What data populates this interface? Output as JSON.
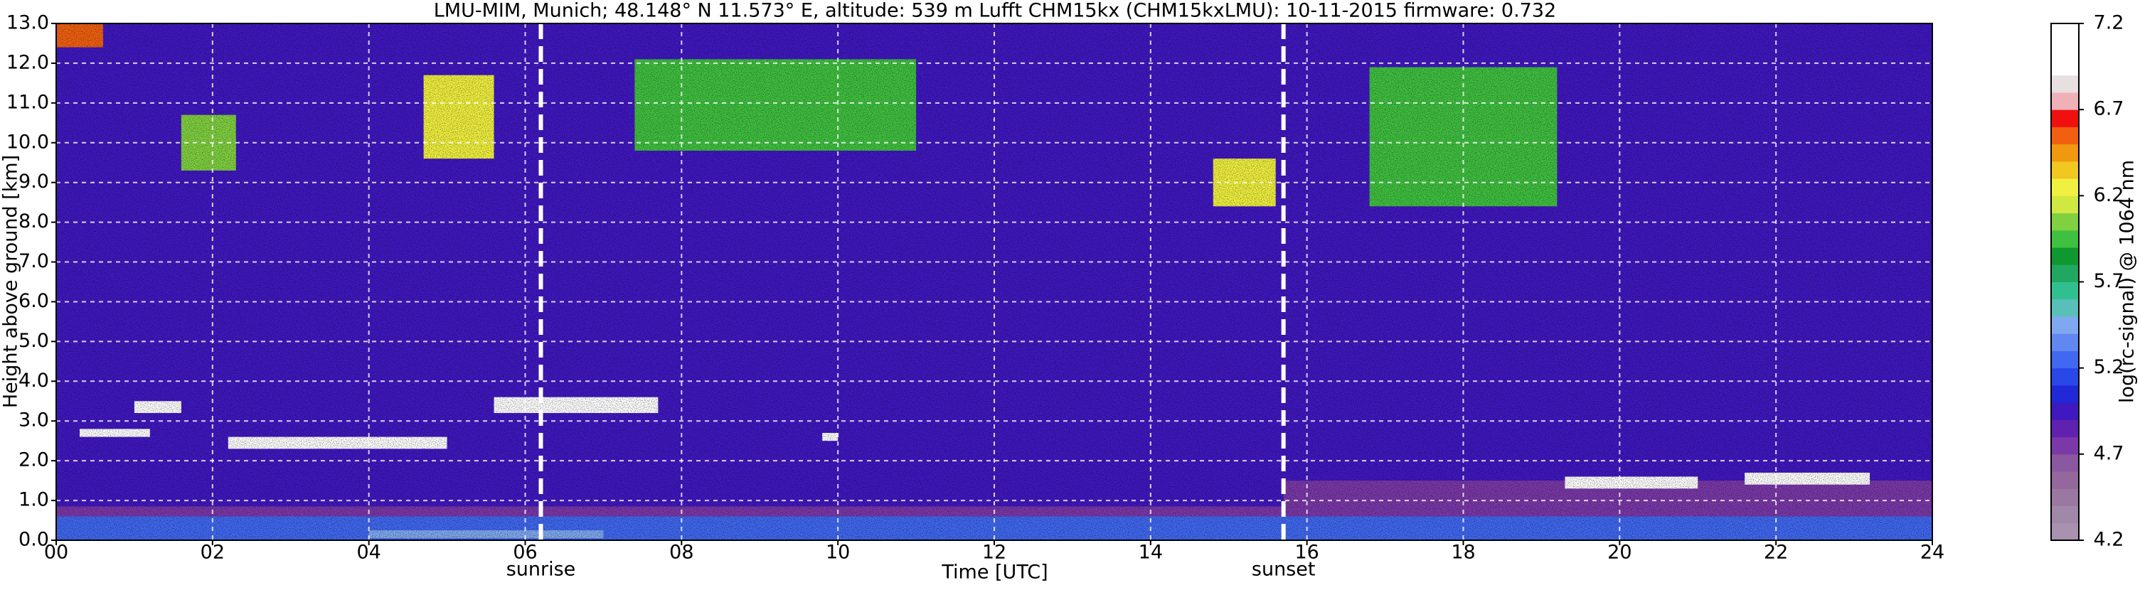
{
  "chart_data": {
    "type": "heatmap",
    "title": "LMU-MIM, Munich; 48.148° N 11.573° E, altitude: 539 m    Lufft CHM15kx (CHM15kxLMU): 10-11-2015    firmware: 0.732",
    "xlabel": "Time [UTC]",
    "ylabel": "Height above ground [km]",
    "xlim": [
      0,
      24
    ],
    "xticks": [
      {
        "value": 0,
        "label": "00"
      },
      {
        "value": 2,
        "label": "02"
      },
      {
        "value": 4,
        "label": "04"
      },
      {
        "value": 6,
        "label": "06"
      },
      {
        "value": 8,
        "label": "08"
      },
      {
        "value": 10,
        "label": "10"
      },
      {
        "value": 12,
        "label": "12"
      },
      {
        "value": 14,
        "label": "14"
      },
      {
        "value": 16,
        "label": "16"
      },
      {
        "value": 18,
        "label": "18"
      },
      {
        "value": 20,
        "label": "20"
      },
      {
        "value": 22,
        "label": "22"
      },
      {
        "value": 24,
        "label": "24"
      }
    ],
    "ylim": [
      0,
      13
    ],
    "yticks": [
      {
        "value": 0,
        "label": "0.0"
      },
      {
        "value": 1,
        "label": "1.0"
      },
      {
        "value": 2,
        "label": "2.0"
      },
      {
        "value": 3,
        "label": "3.0"
      },
      {
        "value": 4,
        "label": "4.0"
      },
      {
        "value": 5,
        "label": "5.0"
      },
      {
        "value": 6,
        "label": "6.0"
      },
      {
        "value": 7,
        "label": "7.0"
      },
      {
        "value": 8,
        "label": "8.0"
      },
      {
        "value": 9,
        "label": "9.0"
      },
      {
        "value": 10,
        "label": "10.0"
      },
      {
        "value": 11,
        "label": "11.0"
      },
      {
        "value": 12,
        "label": "12.0"
      },
      {
        "value": 13,
        "label": "13.0"
      }
    ],
    "grid": true,
    "background": 4.9,
    "patches": [
      {
        "x0": 0,
        "x1": 24,
        "y0": 0,
        "y1": 0.6,
        "value": 5.2
      },
      {
        "x0": 0,
        "x1": 15.7,
        "y0": 0.6,
        "y1": 0.85,
        "value": 4.8
      },
      {
        "x0": 15.7,
        "x1": 24,
        "y0": 0.6,
        "y1": 1.5,
        "value": 4.7
      },
      {
        "x0": 4,
        "x1": 7,
        "y0": 0.05,
        "y1": 0.25,
        "value": 5.5
      },
      {
        "x0": 0.3,
        "x1": 1.2,
        "y0": 2.6,
        "y1": 2.8,
        "value": 7.2
      },
      {
        "x0": 1,
        "x1": 1.6,
        "y0": 3.2,
        "y1": 3.5,
        "value": 7.2
      },
      {
        "x0": 2.2,
        "x1": 5,
        "y0": 2.3,
        "y1": 2.6,
        "value": 7.2
      },
      {
        "x0": 5.6,
        "x1": 7.7,
        "y0": 3.2,
        "y1": 3.6,
        "value": 7.2
      },
      {
        "x0": 9.8,
        "x1": 10,
        "y0": 2.5,
        "y1": 2.7,
        "value": 7.2
      },
      {
        "x0": 19.3,
        "x1": 21,
        "y0": 1.3,
        "y1": 1.6,
        "value": 7.2
      },
      {
        "x0": 21.6,
        "x1": 23.2,
        "y0": 1.4,
        "y1": 1.7,
        "value": 7.2
      },
      {
        "x0": 1.6,
        "x1": 2.3,
        "y0": 9.3,
        "y1": 10.7,
        "value": 6
      },
      {
        "x0": 4.7,
        "x1": 5.6,
        "y0": 9.6,
        "y1": 11.7,
        "value": 6.2
      },
      {
        "x0": 7.4,
        "x1": 11,
        "y0": 9.8,
        "y1": 12.1,
        "value": 5.9
      },
      {
        "x0": 14.8,
        "x1": 15.6,
        "y0": 8.4,
        "y1": 9.6,
        "value": 6.3
      },
      {
        "x0": 16.8,
        "x1": 19.2,
        "y0": 8.4,
        "y1": 11.9,
        "value": 5.9
      },
      {
        "x0": 0,
        "x1": 0.6,
        "y0": 12.4,
        "y1": 13,
        "value": 6.6
      }
    ],
    "annotations": [
      {
        "text": "sunrise",
        "x": 6.2
      },
      {
        "text": "sunset",
        "x": 15.7
      }
    ],
    "colorbar": {
      "label": "log(rc-signal) @ 1064 nm",
      "lim": [
        4.2,
        7.2
      ],
      "ticks": [
        4.2,
        4.7,
        5.2,
        5.7,
        6.2,
        6.7,
        7.2
      ],
      "colors": [
        "#a892b0",
        "#a088a8",
        "#9a78a2",
        "#94689c",
        "#8a58a0",
        "#7a38a8",
        "#6020b0",
        "#4018c0",
        "#2028d8",
        "#2848e8",
        "#4068f0",
        "#6088f0",
        "#80a8f0",
        "#58c0b8",
        "#30c090",
        "#20a860",
        "#109830",
        "#40c040",
        "#80d040",
        "#d0e840",
        "#f0f040",
        "#f0c820",
        "#f09810",
        "#f06010",
        "#f01010",
        "#f0b0b8",
        "#e8e0e0",
        "#ffffff",
        "#ffffff",
        "#ffffff"
      ]
    }
  }
}
